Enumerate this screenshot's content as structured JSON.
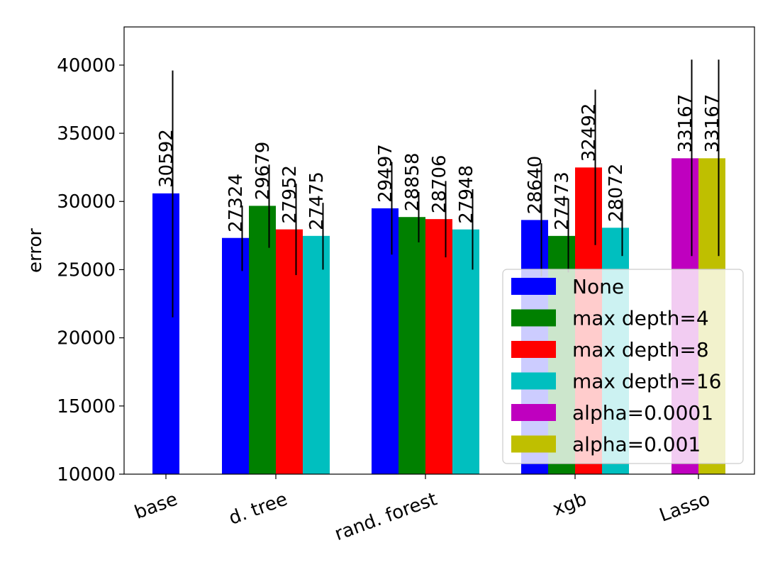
{
  "chart_data": {
    "type": "bar",
    "xlabel": "",
    "ylabel": "error",
    "ylim": [
      10000,
      42800
    ],
    "yticks": [
      10000,
      15000,
      20000,
      25000,
      30000,
      35000,
      40000
    ],
    "grid": false,
    "legend_placement": "lower-right",
    "categories": [
      "base",
      "d. tree",
      "rand. forest",
      "xgb",
      "Lasso"
    ],
    "series_legend": [
      {
        "name": "None",
        "color": "#0000ff"
      },
      {
        "name": "max depth=4",
        "color": "#008000"
      },
      {
        "name": "max depth=8",
        "color": "#ff0000"
      },
      {
        "name": "max depth=16",
        "color": "#00bfbf"
      },
      {
        "name": "alpha=0.0001",
        "color": "#bf00bf"
      },
      {
        "name": "alpha=0.001",
        "color": "#bfbf00"
      }
    ],
    "groups": [
      {
        "category": "base",
        "bars": [
          {
            "series": "None",
            "value": 30592,
            "label": "30592",
            "err_low": 21500,
            "err_high": 39600
          }
        ]
      },
      {
        "category": "d. tree",
        "bars": [
          {
            "series": "None",
            "value": 27324,
            "label": "27324",
            "err_low": 24900,
            "err_high": 29700
          },
          {
            "series": "max depth=4",
            "value": 29679,
            "label": "29679",
            "err_low": 26600,
            "err_high": 32700
          },
          {
            "series": "max depth=8",
            "value": 27952,
            "label": "27952",
            "err_low": 24600,
            "err_high": 31300
          },
          {
            "series": "max depth=16",
            "value": 27475,
            "label": "27475",
            "err_low": 25000,
            "err_high": 29900
          }
        ]
      },
      {
        "category": "rand. forest",
        "bars": [
          {
            "series": "None",
            "value": 29497,
            "label": "29497",
            "err_low": 26100,
            "err_high": 32900
          },
          {
            "series": "max depth=4",
            "value": 28858,
            "label": "28858",
            "err_low": 27000,
            "err_high": 30700
          },
          {
            "series": "max depth=8",
            "value": 28706,
            "label": "28706",
            "err_low": 25900,
            "err_high": 31500
          },
          {
            "series": "max depth=16",
            "value": 27948,
            "label": "27948",
            "err_low": 25000,
            "err_high": 30900
          }
        ]
      },
      {
        "category": "xgb",
        "bars": [
          {
            "series": "None",
            "value": 28640,
            "label": "28640",
            "err_low": 24500,
            "err_high": 32800
          },
          {
            "series": "max depth=4",
            "value": 27473,
            "label": "27473",
            "err_low": 24800,
            "err_high": 30200
          },
          {
            "series": "max depth=8",
            "value": 32492,
            "label": "32492",
            "err_low": 26800,
            "err_high": 38200
          },
          {
            "series": "max depth=16",
            "value": 28072,
            "label": "28072",
            "err_low": 26000,
            "err_high": 30200
          }
        ]
      },
      {
        "category": "Lasso",
        "bars": [
          {
            "series": "alpha=0.0001",
            "value": 33167,
            "label": "33167",
            "err_low": 26000,
            "err_high": 40400
          },
          {
            "series": "alpha=0.001",
            "value": 33167,
            "label": "33167",
            "err_low": 26000,
            "err_high": 40400
          }
        ]
      }
    ]
  }
}
